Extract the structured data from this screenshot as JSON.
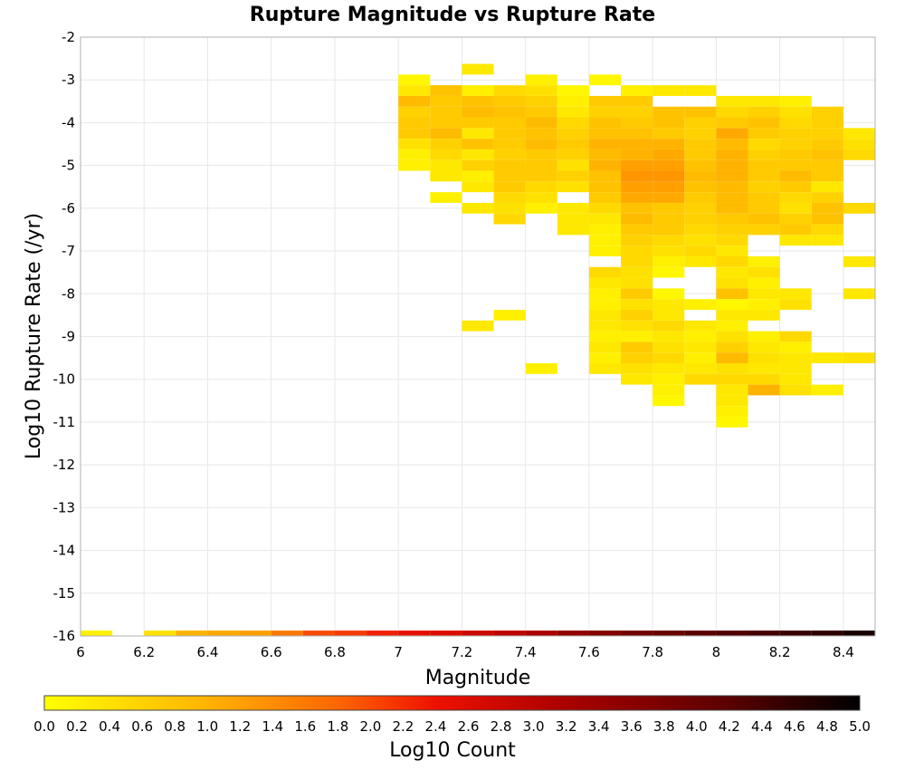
{
  "chart_data": {
    "type": "heatmap",
    "title": "Rupture Magnitude vs Rupture Rate",
    "xlabel": "Magnitude",
    "ylabel": "Log10 Rupture Rate (/yr)",
    "xlim": [
      6,
      8.5
    ],
    "ylim": [
      -16,
      -2
    ],
    "x_ticks": [
      "6",
      "6.2",
      "6.4",
      "6.6",
      "6.8",
      "7",
      "7.2",
      "7.4",
      "7.6",
      "7.8",
      "8",
      "8.2",
      "8.4"
    ],
    "y_ticks": [
      "-2",
      "-3",
      "-4",
      "-5",
      "-6",
      "-7",
      "-8",
      "-9",
      "-10",
      "-11",
      "-12",
      "-13",
      "-14",
      "-15",
      "-16"
    ],
    "bin_width_mag": 0.1,
    "bin_height_log_rate": 0.25,
    "cells": [
      [
        7.2,
        -2.75,
        0.3
      ],
      [
        7.0,
        -3.0,
        0.1
      ],
      [
        7.4,
        -3.0,
        0.2
      ],
      [
        7.6,
        -3.0,
        0.1
      ],
      [
        7.0,
        -3.25,
        0.3
      ],
      [
        7.1,
        -3.25,
        0.8
      ],
      [
        7.2,
        -3.25,
        0.2
      ],
      [
        7.3,
        -3.25,
        0.5
      ],
      [
        7.4,
        -3.25,
        0.4
      ],
      [
        7.5,
        -3.25,
        0.1
      ],
      [
        7.7,
        -3.25,
        0.2
      ],
      [
        7.8,
        -3.25,
        0.3
      ],
      [
        7.9,
        -3.25,
        0.3
      ],
      [
        7.0,
        -3.5,
        0.9
      ],
      [
        7.1,
        -3.5,
        0.7
      ],
      [
        7.2,
        -3.5,
        0.8
      ],
      [
        7.3,
        -3.5,
        0.7
      ],
      [
        7.4,
        -3.5,
        0.6
      ],
      [
        7.5,
        -3.5,
        0.2
      ],
      [
        7.6,
        -3.5,
        0.7
      ],
      [
        7.7,
        -3.5,
        0.7
      ],
      [
        8.0,
        -3.5,
        0.3
      ],
      [
        8.1,
        -3.5,
        0.3
      ],
      [
        8.2,
        -3.5,
        0.2
      ],
      [
        7.0,
        -3.75,
        0.6
      ],
      [
        7.1,
        -3.75,
        0.7
      ],
      [
        7.2,
        -3.75,
        0.9
      ],
      [
        7.3,
        -3.75,
        0.8
      ],
      [
        7.4,
        -3.75,
        0.7
      ],
      [
        7.5,
        -3.75,
        0.3
      ],
      [
        7.6,
        -3.75,
        0.6
      ],
      [
        7.7,
        -3.75,
        0.6
      ],
      [
        7.8,
        -3.75,
        0.8
      ],
      [
        7.9,
        -3.75,
        0.8
      ],
      [
        8.0,
        -3.75,
        0.5
      ],
      [
        8.1,
        -3.75,
        0.6
      ],
      [
        8.2,
        -3.75,
        0.4
      ],
      [
        8.3,
        -3.75,
        0.6
      ],
      [
        7.0,
        -4.0,
        0.7
      ],
      [
        7.1,
        -4.0,
        0.7
      ],
      [
        7.2,
        -4.0,
        0.7
      ],
      [
        7.3,
        -4.0,
        0.7
      ],
      [
        7.4,
        -4.0,
        0.9
      ],
      [
        7.5,
        -4.0,
        0.5
      ],
      [
        7.6,
        -4.0,
        0.8
      ],
      [
        7.7,
        -4.0,
        0.7
      ],
      [
        7.8,
        -4.0,
        0.8
      ],
      [
        7.9,
        -4.0,
        0.6
      ],
      [
        8.0,
        -4.0,
        0.7
      ],
      [
        8.1,
        -4.0,
        0.8
      ],
      [
        8.2,
        -4.0,
        0.5
      ],
      [
        8.3,
        -4.0,
        0.6
      ],
      [
        7.0,
        -4.25,
        0.7
      ],
      [
        7.1,
        -4.25,
        0.9
      ],
      [
        7.2,
        -4.25,
        0.3
      ],
      [
        7.3,
        -4.25,
        0.7
      ],
      [
        7.4,
        -4.25,
        0.8
      ],
      [
        7.5,
        -4.25,
        0.6
      ],
      [
        7.6,
        -4.25,
        0.8
      ],
      [
        7.7,
        -4.25,
        0.8
      ],
      [
        7.8,
        -4.25,
        0.7
      ],
      [
        7.9,
        -4.25,
        0.6
      ],
      [
        8.0,
        -4.25,
        1.1
      ],
      [
        8.1,
        -4.25,
        0.7
      ],
      [
        8.2,
        -4.25,
        0.6
      ],
      [
        8.3,
        -4.25,
        0.6
      ],
      [
        8.4,
        -4.25,
        0.3
      ],
      [
        7.0,
        -4.5,
        0.4
      ],
      [
        7.1,
        -4.5,
        0.6
      ],
      [
        7.2,
        -4.5,
        0.8
      ],
      [
        7.3,
        -4.5,
        0.7
      ],
      [
        7.4,
        -4.5,
        0.9
      ],
      [
        7.5,
        -4.5,
        0.7
      ],
      [
        7.6,
        -4.5,
        1.0
      ],
      [
        7.7,
        -4.5,
        1.0
      ],
      [
        7.8,
        -4.5,
        1.0
      ],
      [
        7.9,
        -4.5,
        0.7
      ],
      [
        8.0,
        -4.5,
        0.9
      ],
      [
        8.1,
        -4.5,
        0.5
      ],
      [
        8.2,
        -4.5,
        0.6
      ],
      [
        8.3,
        -4.5,
        0.7
      ],
      [
        8.4,
        -4.5,
        0.4
      ],
      [
        7.0,
        -4.75,
        0.2
      ],
      [
        7.1,
        -4.75,
        0.5
      ],
      [
        7.2,
        -4.75,
        0.3
      ],
      [
        7.3,
        -4.75,
        0.6
      ],
      [
        7.4,
        -4.75,
        0.7
      ],
      [
        7.5,
        -4.75,
        0.6
      ],
      [
        7.6,
        -4.75,
        0.9
      ],
      [
        7.7,
        -4.75,
        1.0
      ],
      [
        7.8,
        -4.75,
        1.1
      ],
      [
        7.9,
        -4.75,
        0.7
      ],
      [
        8.0,
        -4.75,
        1.0
      ],
      [
        8.1,
        -4.75,
        0.6
      ],
      [
        8.2,
        -4.75,
        0.7
      ],
      [
        8.3,
        -4.75,
        0.8
      ],
      [
        8.4,
        -4.75,
        0.5
      ],
      [
        7.0,
        -5.0,
        0.2
      ],
      [
        7.1,
        -5.0,
        0.3
      ],
      [
        7.2,
        -5.0,
        0.6
      ],
      [
        7.3,
        -5.0,
        0.7
      ],
      [
        7.4,
        -5.0,
        0.7
      ],
      [
        7.5,
        -5.0,
        0.4
      ],
      [
        7.6,
        -5.0,
        1.0
      ],
      [
        7.7,
        -5.0,
        1.2
      ],
      [
        7.8,
        -5.0,
        1.2
      ],
      [
        7.9,
        -5.0,
        0.8
      ],
      [
        8.0,
        -5.0,
        1.0
      ],
      [
        8.1,
        -5.0,
        0.7
      ],
      [
        8.2,
        -5.0,
        0.7
      ],
      [
        8.3,
        -5.0,
        0.7
      ],
      [
        7.1,
        -5.25,
        0.3
      ],
      [
        7.2,
        -5.25,
        0.2
      ],
      [
        7.3,
        -5.25,
        0.7
      ],
      [
        7.4,
        -5.25,
        0.7
      ],
      [
        7.5,
        -5.25,
        0.6
      ],
      [
        7.6,
        -5.25,
        0.8
      ],
      [
        7.7,
        -5.25,
        1.3
      ],
      [
        7.8,
        -5.25,
        1.3
      ],
      [
        7.9,
        -5.25,
        0.9
      ],
      [
        8.0,
        -5.25,
        1.0
      ],
      [
        8.1,
        -5.25,
        0.7
      ],
      [
        8.2,
        -5.25,
        0.9
      ],
      [
        8.3,
        -5.25,
        0.7
      ],
      [
        7.2,
        -5.5,
        0.3
      ],
      [
        7.3,
        -5.5,
        0.7
      ],
      [
        7.4,
        -5.5,
        0.5
      ],
      [
        7.5,
        -5.5,
        0.4
      ],
      [
        7.6,
        -5.5,
        0.8
      ],
      [
        7.7,
        -5.5,
        1.2
      ],
      [
        7.8,
        -5.5,
        1.2
      ],
      [
        7.9,
        -5.5,
        0.8
      ],
      [
        8.0,
        -5.5,
        0.9
      ],
      [
        8.1,
        -5.5,
        0.6
      ],
      [
        8.2,
        -5.5,
        0.7
      ],
      [
        8.3,
        -5.5,
        0.3
      ],
      [
        7.1,
        -5.75,
        0.2
      ],
      [
        7.3,
        -5.75,
        0.5
      ],
      [
        7.4,
        -5.75,
        0.4
      ],
      [
        7.6,
        -5.75,
        0.7
      ],
      [
        7.7,
        -5.75,
        1.1
      ],
      [
        7.8,
        -5.75,
        1.1
      ],
      [
        7.9,
        -5.75,
        0.7
      ],
      [
        8.0,
        -5.75,
        0.9
      ],
      [
        8.1,
        -5.75,
        0.7
      ],
      [
        8.2,
        -5.75,
        0.5
      ],
      [
        8.3,
        -5.75,
        0.6
      ],
      [
        7.2,
        -6.0,
        0.3
      ],
      [
        7.3,
        -6.0,
        0.4
      ],
      [
        7.4,
        -6.0,
        0.2
      ],
      [
        7.5,
        -6.0,
        0.3
      ],
      [
        7.6,
        -6.0,
        0.5
      ],
      [
        7.7,
        -6.0,
        0.8
      ],
      [
        7.8,
        -6.0,
        0.7
      ],
      [
        7.9,
        -6.0,
        0.6
      ],
      [
        8.0,
        -6.0,
        0.9
      ],
      [
        8.1,
        -6.0,
        0.7
      ],
      [
        8.2,
        -6.0,
        0.4
      ],
      [
        8.3,
        -6.0,
        0.8
      ],
      [
        8.4,
        -6.0,
        0.5
      ],
      [
        7.3,
        -6.25,
        0.5
      ],
      [
        7.5,
        -6.25,
        0.3
      ],
      [
        7.6,
        -6.25,
        0.3
      ],
      [
        7.7,
        -6.25,
        0.9
      ],
      [
        7.8,
        -6.25,
        0.7
      ],
      [
        7.9,
        -6.25,
        0.6
      ],
      [
        8.0,
        -6.25,
        0.7
      ],
      [
        8.1,
        -6.25,
        0.8
      ],
      [
        8.2,
        -6.25,
        0.6
      ],
      [
        8.3,
        -6.25,
        0.8
      ],
      [
        7.5,
        -6.5,
        0.3
      ],
      [
        7.6,
        -6.5,
        0.2
      ],
      [
        7.7,
        -6.5,
        0.7
      ],
      [
        7.8,
        -6.5,
        0.7
      ],
      [
        7.9,
        -6.5,
        0.5
      ],
      [
        8.0,
        -6.5,
        0.6
      ],
      [
        8.1,
        -6.5,
        0.6
      ],
      [
        8.2,
        -6.5,
        0.7
      ],
      [
        8.3,
        -6.5,
        0.5
      ],
      [
        7.6,
        -6.75,
        0.2
      ],
      [
        7.7,
        -6.75,
        0.6
      ],
      [
        7.8,
        -6.75,
        0.5
      ],
      [
        7.9,
        -6.75,
        0.4
      ],
      [
        8.0,
        -6.75,
        0.5
      ],
      [
        8.2,
        -6.75,
        0.3
      ],
      [
        8.3,
        -6.75,
        0.3
      ],
      [
        7.6,
        -7.0,
        0.2
      ],
      [
        7.7,
        -7.0,
        0.5
      ],
      [
        7.8,
        -7.0,
        0.4
      ],
      [
        7.9,
        -7.0,
        0.5
      ],
      [
        8.0,
        -7.0,
        0.3
      ],
      [
        7.7,
        -7.25,
        0.5
      ],
      [
        7.8,
        -7.25,
        0.2
      ],
      [
        7.9,
        -7.25,
        0.3
      ],
      [
        8.0,
        -7.25,
        0.5
      ],
      [
        8.1,
        -7.25,
        0.2
      ],
      [
        8.4,
        -7.25,
        0.3
      ],
      [
        7.6,
        -7.5,
        0.5
      ],
      [
        7.7,
        -7.5,
        0.4
      ],
      [
        7.8,
        -7.5,
        0.1
      ],
      [
        8.0,
        -7.5,
        0.3
      ],
      [
        8.1,
        -7.5,
        0.4
      ],
      [
        7.6,
        -7.75,
        0.3
      ],
      [
        7.7,
        -7.75,
        0.4
      ],
      [
        8.0,
        -7.75,
        0.4
      ],
      [
        8.1,
        -7.75,
        0.2
      ],
      [
        7.6,
        -8.0,
        0.2
      ],
      [
        7.7,
        -8.0,
        0.7
      ],
      [
        7.8,
        -8.0,
        0.1
      ],
      [
        8.0,
        -8.0,
        0.8
      ],
      [
        8.1,
        -8.0,
        0.3
      ],
      [
        8.2,
        -8.0,
        0.3
      ],
      [
        7.6,
        -8.25,
        0.2
      ],
      [
        7.7,
        -8.25,
        0.4
      ],
      [
        7.8,
        -8.25,
        0.3
      ],
      [
        7.9,
        -8.25,
        0.2
      ],
      [
        8.0,
        -8.25,
        0.1
      ],
      [
        8.1,
        -8.25,
        0.2
      ],
      [
        8.2,
        -8.25,
        0.4
      ],
      [
        7.3,
        -8.5,
        0.2
      ],
      [
        7.6,
        -8.5,
        0.3
      ],
      [
        7.7,
        -8.5,
        0.6
      ],
      [
        7.8,
        -8.5,
        0.3
      ],
      [
        8.0,
        -8.5,
        0.3
      ],
      [
        8.1,
        -8.5,
        0.3
      ],
      [
        7.6,
        -8.75,
        0.3
      ],
      [
        7.7,
        -8.75,
        0.4
      ],
      [
        7.8,
        -8.75,
        0.5
      ],
      [
        7.9,
        -8.75,
        0.3
      ],
      [
        8.0,
        -8.75,
        0.2
      ],
      [
        7.6,
        -9.0,
        0.2
      ],
      [
        7.7,
        -9.0,
        0.2
      ],
      [
        7.8,
        -9.0,
        0.3
      ],
      [
        7.9,
        -9.0,
        0.2
      ],
      [
        8.0,
        -9.0,
        0.4
      ],
      [
        8.1,
        -9.0,
        0.2
      ],
      [
        8.2,
        -9.0,
        0.5
      ],
      [
        7.6,
        -9.25,
        0.3
      ],
      [
        7.7,
        -9.25,
        0.7
      ],
      [
        7.8,
        -9.25,
        0.4
      ],
      [
        7.9,
        -9.25,
        0.3
      ],
      [
        8.0,
        -9.25,
        0.6
      ],
      [
        8.1,
        -9.25,
        0.3
      ],
      [
        8.2,
        -9.25,
        0.2
      ],
      [
        7.6,
        -9.5,
        0.2
      ],
      [
        7.7,
        -9.5,
        0.6
      ],
      [
        7.8,
        -9.5,
        0.5
      ],
      [
        7.9,
        -9.5,
        0.2
      ],
      [
        8.0,
        -9.5,
        0.9
      ],
      [
        8.1,
        -9.5,
        0.4
      ],
      [
        8.2,
        -9.5,
        0.3
      ],
      [
        8.3,
        -9.5,
        0.3
      ],
      [
        8.4,
        -9.5,
        0.4
      ],
      [
        7.6,
        -9.75,
        0.3
      ],
      [
        7.7,
        -9.75,
        0.4
      ],
      [
        7.8,
        -9.75,
        0.3
      ],
      [
        7.9,
        -9.75,
        0.3
      ],
      [
        8.0,
        -9.75,
        0.4
      ],
      [
        8.1,
        -9.75,
        0.3
      ],
      [
        8.2,
        -9.75,
        0.3
      ],
      [
        7.7,
        -10.0,
        0.3
      ],
      [
        7.8,
        -10.0,
        0.2
      ],
      [
        7.9,
        -10.0,
        0.5
      ],
      [
        8.0,
        -10.0,
        0.5
      ],
      [
        8.1,
        -10.0,
        0.5
      ],
      [
        8.2,
        -10.0,
        0.3
      ],
      [
        7.8,
        -10.25,
        0.2
      ],
      [
        8.0,
        -10.25,
        0.3
      ],
      [
        8.1,
        -10.25,
        1.0
      ],
      [
        8.2,
        -10.25,
        0.4
      ],
      [
        8.3,
        -10.25,
        0.2
      ],
      [
        7.8,
        -10.5,
        0.1
      ],
      [
        8.0,
        -10.5,
        0.3
      ],
      [
        8.0,
        -10.75,
        0.2
      ],
      [
        8.0,
        -11.0,
        0.1
      ],
      [
        7.4,
        -9.75,
        0.2
      ],
      [
        7.2,
        -8.75,
        0.3
      ],
      [
        8.4,
        -8.0,
        0.3
      ],
      [
        6.0,
        -16.0,
        0.2
      ],
      [
        6.2,
        -16.0,
        0.4
      ],
      [
        6.3,
        -16.0,
        1.0
      ],
      [
        6.4,
        -16.0,
        1.1
      ],
      [
        6.5,
        -16.0,
        1.2
      ],
      [
        6.6,
        -16.0,
        1.6
      ],
      [
        6.7,
        -16.0,
        2.0
      ],
      [
        6.8,
        -16.0,
        2.1
      ],
      [
        6.9,
        -16.0,
        2.3
      ],
      [
        7.0,
        -16.0,
        2.5
      ],
      [
        7.1,
        -16.0,
        2.6
      ],
      [
        7.2,
        -16.0,
        2.8
      ],
      [
        7.3,
        -16.0,
        3.0
      ],
      [
        7.4,
        -16.0,
        3.2
      ],
      [
        7.5,
        -16.0,
        3.5
      ],
      [
        7.6,
        -16.0,
        3.7
      ],
      [
        7.7,
        -16.0,
        3.9
      ],
      [
        7.8,
        -16.0,
        4.0
      ],
      [
        7.9,
        -16.0,
        4.2
      ],
      [
        8.0,
        -16.0,
        4.3
      ],
      [
        8.1,
        -16.0,
        4.4
      ],
      [
        8.2,
        -16.0,
        4.5
      ],
      [
        8.3,
        -16.0,
        4.6
      ],
      [
        8.4,
        -16.0,
        4.8
      ]
    ],
    "colorbar": {
      "label": "Log10 Count",
      "range": [
        0,
        5
      ],
      "ticks": [
        "0.0",
        "0.2",
        "0.4",
        "0.6",
        "0.8",
        "1.0",
        "1.2",
        "1.4",
        "1.6",
        "1.8",
        "2.0",
        "2.2",
        "2.4",
        "2.6",
        "2.8",
        "3.0",
        "3.2",
        "3.4",
        "3.6",
        "3.8",
        "4.0",
        "4.2",
        "4.4",
        "4.6",
        "4.8",
        "5.0"
      ],
      "stops": [
        {
          "value": 0.0,
          "color": "#ffff00"
        },
        {
          "value": 1.0,
          "color": "#ffb300"
        },
        {
          "value": 1.8,
          "color": "#ff6600"
        },
        {
          "value": 2.4,
          "color": "#ee1100"
        },
        {
          "value": 3.2,
          "color": "#aa0000"
        },
        {
          "value": 4.2,
          "color": "#5a0000"
        },
        {
          "value": 5.0,
          "color": "#000000"
        }
      ]
    },
    "grid": true
  }
}
